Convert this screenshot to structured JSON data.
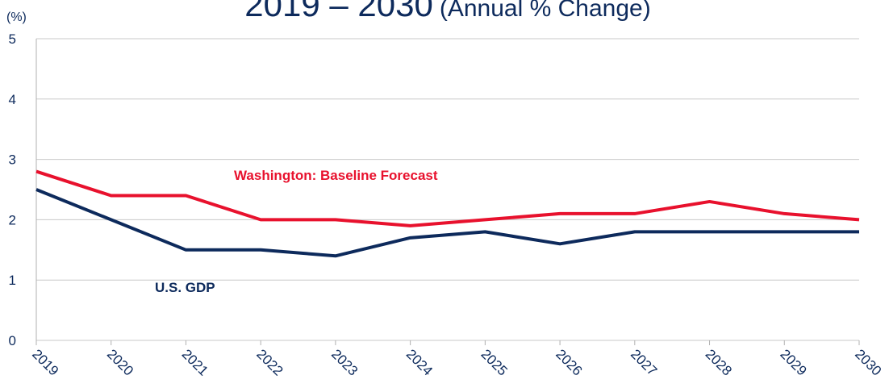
{
  "chart_data": {
    "type": "line",
    "title": "2019 – 2030",
    "subtitle": "(Annual % Change)",
    "y_axis_label": "(%)",
    "categories": [
      "2019",
      "2020",
      "2021",
      "2022",
      "2023",
      "2024",
      "2025",
      "2026",
      "2027",
      "2028",
      "2029",
      "2030"
    ],
    "series": [
      {
        "name": "Washington: Baseline Forecast",
        "color": "#e8112d",
        "values": [
          2.8,
          2.4,
          2.4,
          2.0,
          2.0,
          1.9,
          2.0,
          2.1,
          2.1,
          2.3,
          2.1,
          2.0
        ]
      },
      {
        "name": "U.S.  GDP",
        "color": "#0d2a5c",
        "values": [
          2.5,
          2.0,
          1.5,
          1.5,
          1.4,
          1.7,
          1.8,
          1.6,
          1.8,
          1.8,
          1.8,
          1.8
        ]
      }
    ],
    "ylim": [
      0,
      5
    ],
    "yticks": [
      0,
      1,
      2,
      3,
      4,
      5
    ],
    "grid": true
  }
}
